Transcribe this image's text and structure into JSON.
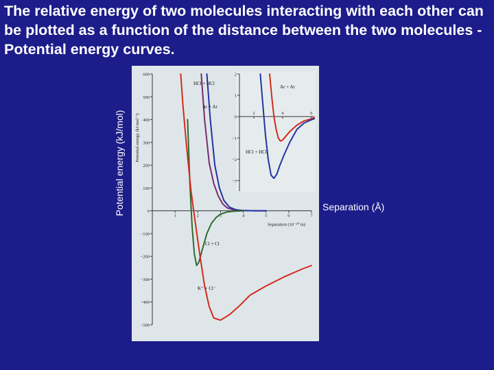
{
  "slide": {
    "title": "The relative energy of two molecules interacting with each other can be plotted as a function of the distance between the two molecules - Potential energy curves.",
    "ylabel": "Potential energy (kJ/mol)",
    "xlabel": "Separation (Å)"
  },
  "colors": {
    "background": "#1c1c8a",
    "figure_background": "#dfe6ea",
    "red_curve": "#d42a1a",
    "blue_curve": "#2233a0",
    "green_curve": "#2e6a2e",
    "purple_curve": "#7a2a6a"
  },
  "chart_data": [
    {
      "type": "line",
      "ylabel": "Potential energy (kJ mol⁻¹)",
      "xlabel": "Separation (10⁻¹⁰ m)",
      "xlim": [
        0,
        7
      ],
      "ylim": [
        -500,
        600
      ],
      "x_ticks": [
        "1",
        "2",
        "3",
        "4",
        "5",
        "6",
        "7"
      ],
      "y_ticks": [
        "600",
        "500",
        "400",
        "300",
        "200",
        "100",
        "0",
        "−100",
        "−200",
        "−300",
        "−400",
        "−500"
      ],
      "series": [
        {
          "name": "HCl + HCl",
          "color": "#7a2a6a",
          "x": [
            2.15,
            2.3,
            2.5,
            2.7,
            2.9,
            3.1,
            3.3,
            3.6,
            4.0,
            4.5,
            5.0
          ],
          "y": [
            600,
            400,
            210,
            120,
            65,
            30,
            12,
            3,
            1,
            0,
            0
          ]
        },
        {
          "name": "Ar + Ar",
          "color": "#2233a0",
          "x": [
            2.4,
            2.55,
            2.75,
            2.95,
            3.15,
            3.4,
            3.7,
            4.0,
            4.5,
            5.0
          ],
          "y": [
            600,
            400,
            200,
            100,
            45,
            15,
            4,
            1,
            0,
            0
          ]
        },
        {
          "name": "Cl + Cl",
          "color": "#2e6a2e",
          "x": [
            1.55,
            1.65,
            1.75,
            1.85,
            1.95,
            2.05,
            2.2,
            2.4,
            2.6,
            2.8,
            3.0,
            3.3,
            3.6,
            4.0
          ],
          "y": [
            400,
            120,
            -70,
            -190,
            -240,
            -225,
            -170,
            -100,
            -55,
            -30,
            -15,
            -5,
            -2,
            0
          ]
        },
        {
          "name": "K⁺ + Cl⁻",
          "color": "#d42a1a",
          "x": [
            1.25,
            1.35,
            1.5,
            1.7,
            1.9,
            2.1,
            2.3,
            2.5,
            2.7,
            3.0,
            3.4,
            3.8,
            4.3,
            5.0,
            5.8,
            6.6,
            7.0
          ],
          "y": [
            600,
            460,
            290,
            90,
            -60,
            -200,
            -330,
            -420,
            -470,
            -480,
            -455,
            -420,
            -370,
            -330,
            -290,
            -255,
            -240
          ]
        }
      ],
      "annotations": [
        "HCl + HCl",
        "Ar + Ar",
        "Cl + Cl",
        "K⁺ + Cl⁻"
      ]
    },
    {
      "type": "line",
      "xlim": [
        1,
        6.2
      ],
      "ylim": [
        -3.5,
        2
      ],
      "x_ticks": [
        "2",
        "4",
        "6"
      ],
      "y_ticks": [
        "2",
        "1",
        "0",
        "−1",
        "−2",
        "−3"
      ],
      "series": [
        {
          "name": "Ar + Ar",
          "color": "#d42a1a",
          "x": [
            3.1,
            3.25,
            3.4,
            3.55,
            3.7,
            3.85,
            4.0,
            4.25,
            4.5,
            5.0,
            5.5,
            6.0,
            6.2
          ],
          "y": [
            2,
            0.9,
            0.0,
            -0.6,
            -1.0,
            -1.15,
            -1.1,
            -0.9,
            -0.7,
            -0.4,
            -0.2,
            -0.1,
            -0.05
          ]
        },
        {
          "name": "HCl + HCl",
          "color": "#2233a0",
          "x": [
            2.45,
            2.6,
            2.8,
            3.0,
            3.2,
            3.4,
            3.6,
            3.8,
            4.1,
            4.5,
            5.0,
            5.5,
            6.0,
            6.2
          ],
          "y": [
            2,
            0.8,
            -0.8,
            -2.0,
            -2.75,
            -2.9,
            -2.7,
            -2.3,
            -1.8,
            -1.2,
            -0.6,
            -0.3,
            -0.15,
            -0.1
          ]
        }
      ],
      "annotations": [
        "Ar + Ar",
        "HCl + HCl"
      ]
    }
  ]
}
